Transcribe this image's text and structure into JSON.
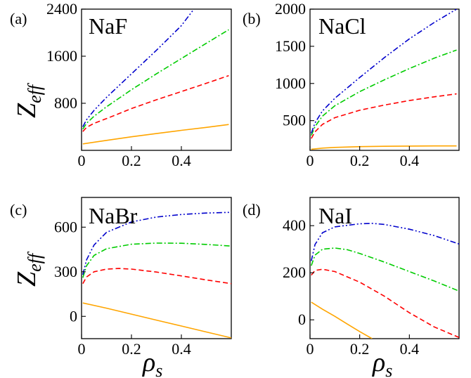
{
  "figure": {
    "y_label": "Z",
    "y_label_sub": "eff",
    "x_label": "ρ",
    "x_label_sub": "s"
  },
  "chart_data": [
    {
      "type": "line",
      "panel": "(a)",
      "title": "NaF",
      "xlim": [
        0,
        0.6
      ],
      "ylim": [
        0,
        2400
      ],
      "x_ticks": [
        0,
        0.2,
        0.4
      ],
      "x_tick_labels": [
        "0",
        "0.2",
        "0.4"
      ],
      "y_ticks": [
        800,
        1600,
        2400
      ],
      "y_tick_labels": [
        "800",
        "1600",
        "2400"
      ],
      "series": [
        {
          "color": "#ffa500",
          "dash": "solid",
          "x": [
            0.005,
            0.1,
            0.2,
            0.3,
            0.4,
            0.5,
            0.59
          ],
          "y": [
            110,
            170,
            230,
            285,
            340,
            390,
            440
          ]
        },
        {
          "color": "#ff0000",
          "dash": "dashed",
          "x": [
            0.005,
            0.02,
            0.05,
            0.1,
            0.2,
            0.3,
            0.4,
            0.5,
            0.59
          ],
          "y": [
            320,
            390,
            460,
            540,
            710,
            860,
            1000,
            1140,
            1270
          ]
        },
        {
          "color": "#00cc00",
          "dash": "dashdot",
          "x": [
            0.005,
            0.02,
            0.05,
            0.1,
            0.2,
            0.3,
            0.4,
            0.5,
            0.59
          ],
          "y": [
            360,
            460,
            580,
            740,
            1030,
            1300,
            1560,
            1820,
            2050
          ]
        },
        {
          "color": "#0000cc",
          "dash": "dashdotdot",
          "x": [
            0.005,
            0.02,
            0.05,
            0.1,
            0.2,
            0.3,
            0.4,
            0.45
          ],
          "y": [
            400,
            520,
            680,
            900,
            1300,
            1700,
            2120,
            2400
          ]
        }
      ]
    },
    {
      "type": "line",
      "panel": "(b)",
      "title": "NaCl",
      "xlim": [
        0,
        0.6
      ],
      "ylim": [
        100,
        2000
      ],
      "x_ticks": [
        0,
        0.2,
        0.4
      ],
      "x_tick_labels": [
        "0",
        "0.2",
        "0.4"
      ],
      "y_ticks": [
        500,
        1000,
        1500,
        2000
      ],
      "y_tick_labels": [
        "500",
        "1000",
        "1500",
        "2000"
      ],
      "series": [
        {
          "color": "#ffa500",
          "dash": "solid",
          "x": [
            0.005,
            0.05,
            0.1,
            0.2,
            0.3,
            0.4,
            0.5,
            0.59
          ],
          "y": [
            115,
            130,
            140,
            150,
            155,
            158,
            160,
            160
          ]
        },
        {
          "color": "#ff0000",
          "dash": "dashed",
          "x": [
            0.005,
            0.02,
            0.05,
            0.1,
            0.2,
            0.3,
            0.4,
            0.5,
            0.59
          ],
          "y": [
            260,
            350,
            450,
            540,
            640,
            710,
            770,
            820,
            860
          ]
        },
        {
          "color": "#00cc00",
          "dash": "dashdot",
          "x": [
            0.005,
            0.02,
            0.05,
            0.1,
            0.2,
            0.3,
            0.4,
            0.5,
            0.59
          ],
          "y": [
            300,
            420,
            560,
            700,
            890,
            1050,
            1200,
            1340,
            1450
          ]
        },
        {
          "color": "#0000cc",
          "dash": "dashdotdot",
          "x": [
            0.005,
            0.02,
            0.05,
            0.1,
            0.2,
            0.3,
            0.4,
            0.5,
            0.59
          ],
          "y": [
            330,
            470,
            630,
            800,
            1080,
            1350,
            1600,
            1820,
            2000
          ]
        }
      ]
    },
    {
      "type": "line",
      "panel": "(c)",
      "title": "NaBr",
      "xlim": [
        0,
        0.6
      ],
      "ylim": [
        -150,
        800
      ],
      "x_ticks": [
        0,
        0.2,
        0.4
      ],
      "x_tick_labels": [
        "0",
        "0.2",
        "0.4"
      ],
      "y_ticks": [
        0,
        300,
        600
      ],
      "y_tick_labels": [
        "0",
        "300",
        "600"
      ],
      "series": [
        {
          "color": "#ffa500",
          "dash": "solid",
          "x": [
            0.005,
            0.1,
            0.2,
            0.3,
            0.4,
            0.5,
            0.6
          ],
          "y": [
            90,
            55,
            15,
            -25,
            -65,
            -105,
            -145
          ]
        },
        {
          "color": "#ff0000",
          "dash": "dashed",
          "x": [
            0.005,
            0.02,
            0.05,
            0.1,
            0.15,
            0.2,
            0.3,
            0.4,
            0.5,
            0.6
          ],
          "y": [
            220,
            265,
            300,
            318,
            322,
            318,
            298,
            272,
            245,
            220
          ]
        },
        {
          "color": "#00cc00",
          "dash": "dashdot",
          "x": [
            0.005,
            0.02,
            0.05,
            0.1,
            0.2,
            0.3,
            0.4,
            0.5,
            0.6
          ],
          "y": [
            260,
            340,
            410,
            455,
            485,
            493,
            492,
            484,
            473
          ]
        },
        {
          "color": "#0000cc",
          "dash": "dashdotdot",
          "x": [
            0.005,
            0.02,
            0.05,
            0.1,
            0.2,
            0.3,
            0.4,
            0.5,
            0.6
          ],
          "y": [
            280,
            380,
            480,
            565,
            635,
            668,
            685,
            695,
            700
          ]
        }
      ]
    },
    {
      "type": "line",
      "panel": "(d)",
      "title": "NaI",
      "xlim": [
        0,
        0.6
      ],
      "ylim": [
        -80,
        520
      ],
      "x_ticks": [
        0,
        0.2,
        0.4
      ],
      "x_tick_labels": [
        "0",
        "0.2",
        "0.4"
      ],
      "y_ticks": [
        0,
        200,
        400
      ],
      "y_tick_labels": [
        "0",
        "200",
        "400"
      ],
      "series": [
        {
          "color": "#ffa500",
          "dash": "solid",
          "x": [
            0.005,
            0.05,
            0.1,
            0.15,
            0.2,
            0.25
          ],
          "y": [
            75,
            45,
            15,
            -18,
            -50,
            -80
          ]
        },
        {
          "color": "#ff0000",
          "dash": "dashed",
          "x": [
            0.005,
            0.02,
            0.05,
            0.1,
            0.2,
            0.3,
            0.4,
            0.5,
            0.6
          ],
          "y": [
            190,
            210,
            215,
            205,
            160,
            100,
            30,
            -30,
            -75
          ]
        },
        {
          "color": "#00cc00",
          "dash": "dashdot",
          "x": [
            0.005,
            0.02,
            0.05,
            0.1,
            0.15,
            0.2,
            0.3,
            0.4,
            0.5,
            0.6
          ],
          "y": [
            230,
            275,
            300,
            305,
            298,
            282,
            245,
            205,
            165,
            122
          ]
        },
        {
          "color": "#0000cc",
          "dash": "dashdotdot",
          "x": [
            0.005,
            0.02,
            0.05,
            0.1,
            0.2,
            0.25,
            0.3,
            0.4,
            0.5,
            0.6
          ],
          "y": [
            250,
            320,
            370,
            395,
            408,
            410,
            405,
            385,
            358,
            322
          ]
        }
      ]
    }
  ]
}
